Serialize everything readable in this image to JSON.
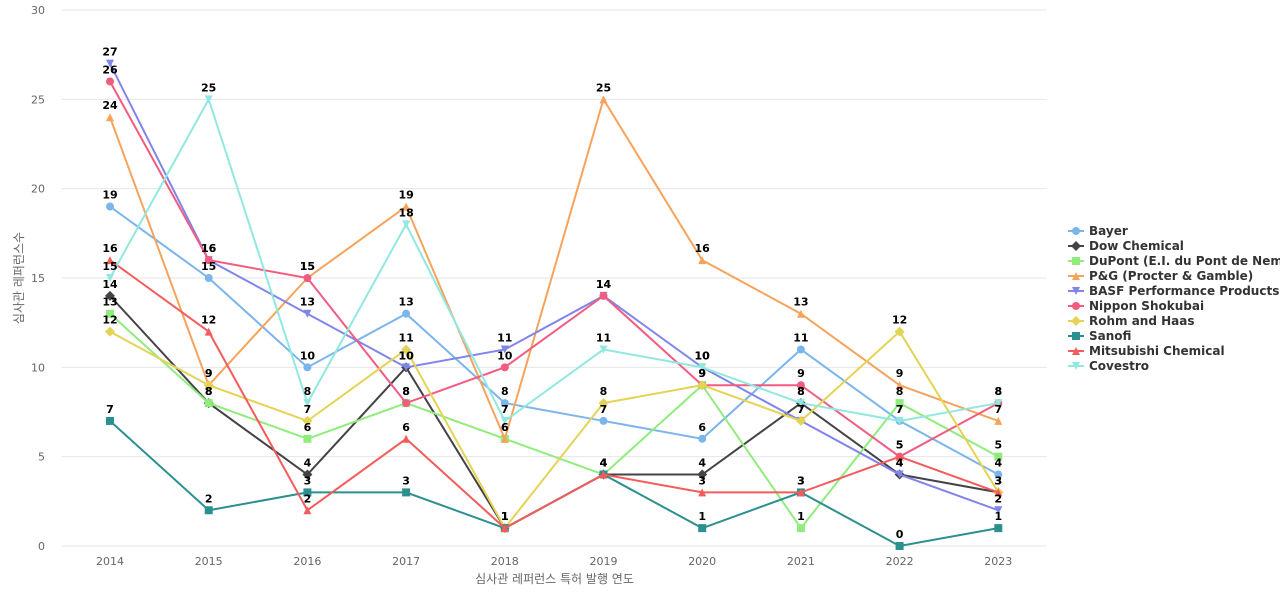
{
  "chart_data": {
    "type": "line",
    "xlabel": "심사관 레퍼런스 특허 발행 연도",
    "ylabel": "심사관 레퍼런스수",
    "ylim": [
      0,
      30
    ],
    "yticks": [
      0,
      5,
      10,
      15,
      20,
      25,
      30
    ],
    "grid": true,
    "legend_position": "right",
    "categories": [
      "2014",
      "2015",
      "2016",
      "2017",
      "2018",
      "2019",
      "2020",
      "2021",
      "2022",
      "2023"
    ],
    "series": [
      {
        "name": "Bayer",
        "display": "Bayer",
        "color": "#7cb5ec",
        "marker": "circle",
        "values": [
          19,
          15,
          10,
          13,
          8,
          7,
          6,
          11,
          7,
          4
        ]
      },
      {
        "name": "Dow Chemical",
        "display": "Dow Chemical",
        "color": "#434348",
        "marker": "diamond",
        "values": [
          14,
          8,
          4,
          10,
          1,
          4,
          4,
          8,
          4,
          3
        ]
      },
      {
        "name": "DuPont (E.I. du Pont de Nemours)",
        "display": "DuPont (E.I. du Pont de Nem...",
        "color": "#90ed7d",
        "marker": "square",
        "values": [
          13,
          8,
          6,
          8,
          6,
          4,
          9,
          1,
          8,
          5
        ]
      },
      {
        "name": "P&G (Procter & Gamble)",
        "display": "P&G (Procter & Gamble)",
        "color": "#f7a35c",
        "marker": "triangle",
        "values": [
          24,
          9,
          15,
          19,
          6,
          25,
          16,
          13,
          9,
          7
        ]
      },
      {
        "name": "BASF Performance Products",
        "display": "BASF Performance Products",
        "color": "#8085e9",
        "marker": "triangle-down",
        "values": [
          27,
          16,
          13,
          10,
          11,
          14,
          10,
          7,
          4,
          2
        ]
      },
      {
        "name": "Nippon Shokubai",
        "display": "Nippon Shokubai",
        "color": "#f15c80",
        "marker": "circle",
        "values": [
          26,
          16,
          15,
          8,
          10,
          14,
          9,
          9,
          5,
          8
        ]
      },
      {
        "name": "Rohm and Haas",
        "display": "Rohm and Haas",
        "color": "#e4d354",
        "marker": "diamond",
        "values": [
          12,
          9,
          7,
          11,
          1,
          8,
          9,
          7,
          12,
          3
        ]
      },
      {
        "name": "Sanofi",
        "display": "Sanofi",
        "color": "#2b908f",
        "marker": "square",
        "values": [
          7,
          2,
          3,
          3,
          1,
          4,
          1,
          3,
          0,
          1
        ]
      },
      {
        "name": "Mitsubishi Chemical",
        "display": "Mitsubishi Chemical",
        "color": "#f45b5b",
        "marker": "triangle",
        "values": [
          16,
          12,
          2,
          6,
          1,
          4,
          3,
          3,
          5,
          3
        ]
      },
      {
        "name": "Covestro",
        "display": "Covestro",
        "color": "#91e8e1",
        "marker": "triangle-down",
        "values": [
          15,
          25,
          8,
          18,
          7,
          11,
          10,
          8,
          7,
          8
        ]
      }
    ]
  }
}
